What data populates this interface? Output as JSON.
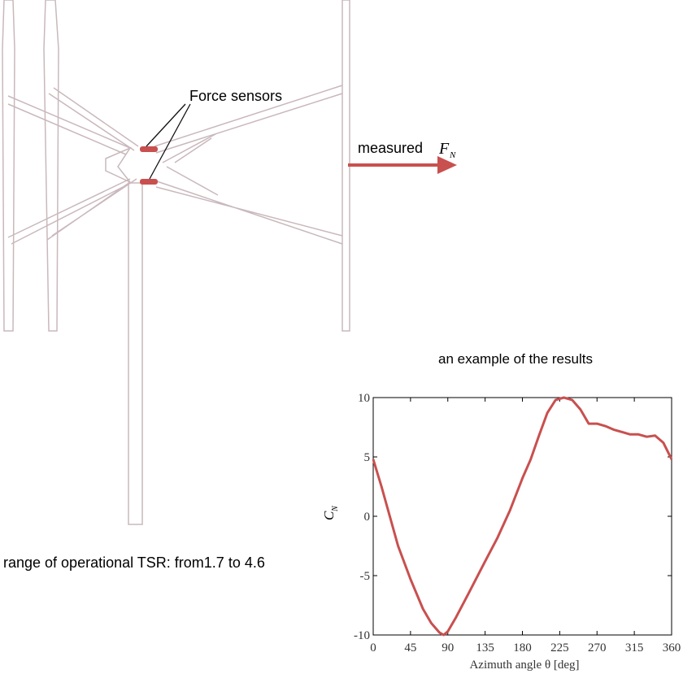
{
  "diagram": {
    "sensor_label": "Force sensors",
    "measured_label": "measured",
    "force_symbol": "F",
    "force_subscript": "N",
    "tsr_note": "range of operational TSR: from1.7 to 4.6"
  },
  "chart_data": {
    "type": "line",
    "title": "an example of the results",
    "xlabel": "Azimuth angle θ [deg]",
    "ylabel": "C",
    "ylabel_subscript": "N",
    "x": [
      0,
      10,
      20,
      30,
      45,
      60,
      70,
      80,
      85,
      90,
      100,
      115,
      135,
      150,
      165,
      180,
      190,
      200,
      210,
      220,
      230,
      240,
      250,
      260,
      270,
      280,
      290,
      300,
      310,
      320,
      330,
      340,
      350,
      360
    ],
    "values": [
      4.8,
      2.5,
      0,
      -2.5,
      -5.3,
      -7.8,
      -9.0,
      -9.8,
      -10,
      -9.7,
      -8.5,
      -6.5,
      -3.8,
      -1.8,
      0.5,
      3.2,
      4.8,
      6.8,
      8.7,
      9.8,
      10,
      9.8,
      9.0,
      7.8,
      7.8,
      7.6,
      7.3,
      7.1,
      6.9,
      6.9,
      6.7,
      6.8,
      6.2,
      4.8
    ],
    "color": "#c8504f",
    "xlim": [
      0,
      360
    ],
    "xticks": [
      0,
      45,
      90,
      135,
      180,
      225,
      270,
      315,
      360
    ],
    "ylim": [
      -10,
      10
    ],
    "yticks": [
      -10,
      -5,
      0,
      5,
      10
    ]
  }
}
